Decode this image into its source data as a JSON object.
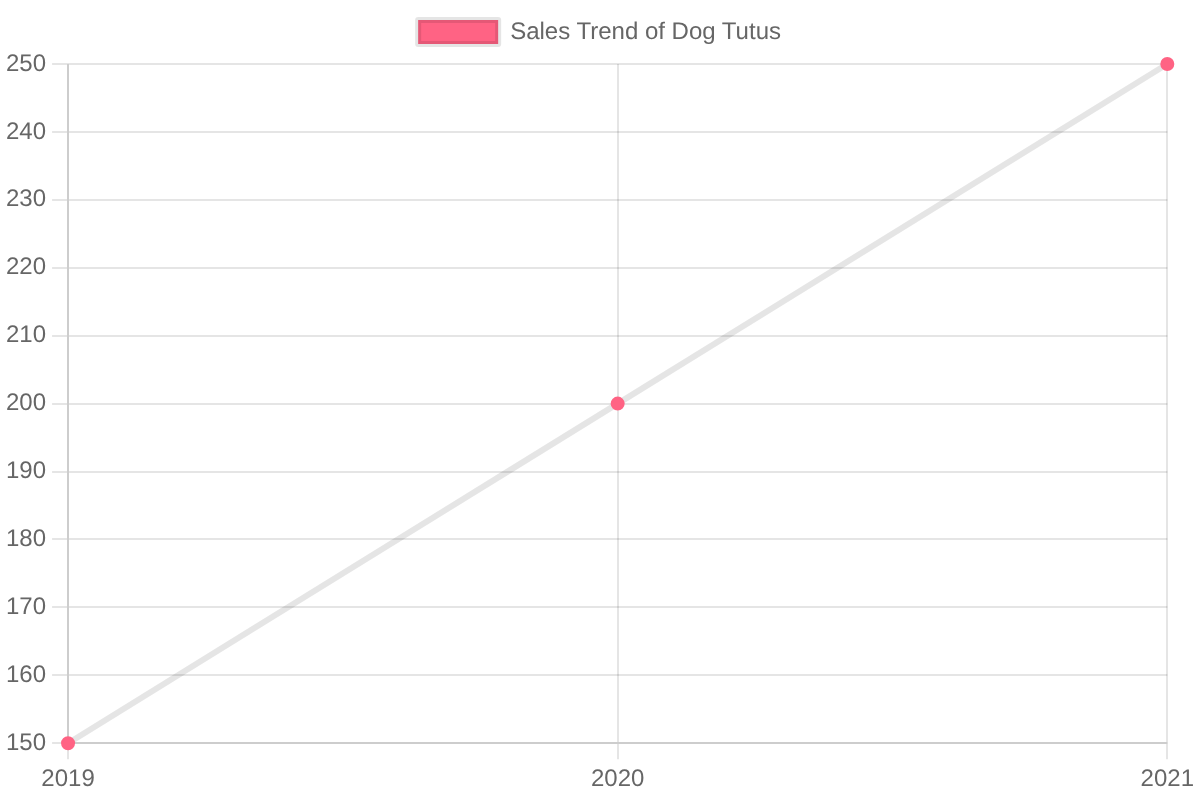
{
  "chart_data": {
    "type": "line",
    "categories": [
      "2019",
      "2020",
      "2021"
    ],
    "series": [
      {
        "name": "Sales Trend of Dog Tutus",
        "color": "#ff6384",
        "values": [
          150,
          200,
          250
        ]
      }
    ],
    "ylim": [
      150,
      250
    ],
    "yticks": [
      150,
      160,
      170,
      180,
      190,
      200,
      210,
      220,
      230,
      240,
      250
    ],
    "grid": true,
    "legend": "top",
    "marker": "circle",
    "line_style": "solid"
  }
}
